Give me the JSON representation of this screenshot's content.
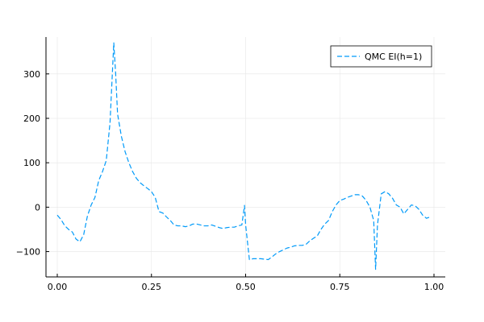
{
  "chart_data": {
    "type": "line",
    "title": "",
    "xlabel": "",
    "ylabel": "",
    "xlim": [
      -0.03,
      1.03
    ],
    "ylim": [
      -157,
      383
    ],
    "x_ticks": [
      0,
      0.25,
      0.5,
      0.75,
      1.0
    ],
    "x_tick_labels": [
      "0.00",
      "0.25",
      "0.50",
      "0.75",
      "1.00"
    ],
    "y_ticks": [
      -100,
      0,
      100,
      200,
      300
    ],
    "y_tick_labels": [
      "−100",
      "0",
      "100",
      "200",
      "300"
    ],
    "grid": true,
    "legend_position": "top-right",
    "series": [
      {
        "name": "QMC EI(h=1)",
        "color": "#009af9",
        "line_style": "dashed",
        "x": [
          0.0,
          0.01,
          0.02,
          0.03,
          0.04,
          0.05,
          0.06,
          0.07,
          0.08,
          0.09,
          0.1,
          0.11,
          0.12,
          0.13,
          0.14,
          0.15,
          0.155,
          0.16,
          0.17,
          0.18,
          0.19,
          0.2,
          0.21,
          0.22,
          0.23,
          0.24,
          0.25,
          0.26,
          0.27,
          0.28,
          0.29,
          0.3,
          0.31,
          0.32,
          0.33,
          0.34,
          0.35,
          0.36,
          0.37,
          0.38,
          0.39,
          0.4,
          0.41,
          0.42,
          0.43,
          0.44,
          0.45,
          0.46,
          0.47,
          0.48,
          0.49,
          0.497,
          0.5,
          0.51,
          0.52,
          0.53,
          0.54,
          0.55,
          0.56,
          0.57,
          0.58,
          0.59,
          0.6,
          0.61,
          0.62,
          0.63,
          0.64,
          0.65,
          0.66,
          0.67,
          0.68,
          0.69,
          0.7,
          0.71,
          0.72,
          0.73,
          0.74,
          0.75,
          0.76,
          0.77,
          0.78,
          0.79,
          0.8,
          0.81,
          0.82,
          0.83,
          0.84,
          0.845,
          0.85,
          0.86,
          0.87,
          0.88,
          0.89,
          0.9,
          0.91,
          0.92,
          0.93,
          0.94,
          0.95,
          0.96,
          0.97,
          0.98,
          0.99
        ],
        "y": [
          -18,
          -28,
          -42,
          -50,
          -56,
          -72,
          -78,
          -62,
          -20,
          5,
          22,
          60,
          80,
          105,
          190,
          370,
          300,
          210,
          160,
          125,
          100,
          80,
          65,
          55,
          48,
          42,
          35,
          22,
          -10,
          -13,
          -22,
          -30,
          -40,
          -42,
          -42,
          -44,
          -42,
          -38,
          -38,
          -40,
          -42,
          -42,
          -40,
          -43,
          -46,
          -48,
          -46,
          -45,
          -45,
          -42,
          -40,
          4,
          -40,
          -118,
          -116,
          -116,
          -116,
          -117,
          -118,
          -112,
          -105,
          -100,
          -96,
          -92,
          -90,
          -87,
          -86,
          -86,
          -84,
          -76,
          -70,
          -65,
          -50,
          -38,
          -30,
          -10,
          5,
          15,
          18,
          22,
          25,
          28,
          28,
          25,
          15,
          0,
          -30,
          -140,
          -40,
          30,
          35,
          30,
          20,
          5,
          0,
          -15,
          -5,
          5,
          3,
          -5,
          -18,
          -25,
          -22
        ]
      }
    ]
  }
}
